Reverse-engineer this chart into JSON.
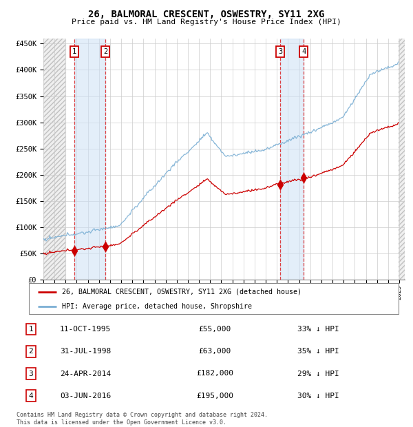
{
  "title": "26, BALMORAL CRESCENT, OSWESTRY, SY11 2XG",
  "subtitle": "Price paid vs. HM Land Registry's House Price Index (HPI)",
  "ylim": [
    0,
    460000
  ],
  "yticks": [
    0,
    50000,
    100000,
    150000,
    200000,
    250000,
    300000,
    350000,
    400000,
    450000
  ],
  "ytick_labels": [
    "£0",
    "£50K",
    "£100K",
    "£150K",
    "£200K",
    "£250K",
    "£300K",
    "£350K",
    "£400K",
    "£450K"
  ],
  "hpi_color": "#7bafd4",
  "price_color": "#cc0000",
  "marker_color": "#cc0000",
  "sale_dates": [
    "1995-10-11",
    "1998-07-31",
    "2014-04-24",
    "2016-06-03"
  ],
  "sale_prices": [
    55000,
    63000,
    182000,
    195000
  ],
  "sale_labels": [
    "1",
    "2",
    "3",
    "4"
  ],
  "sale_pcts": [
    "33% ↓ HPI",
    "35% ↓ HPI",
    "29% ↓ HPI",
    "30% ↓ HPI"
  ],
  "sale_display_dates": [
    "11-OCT-1995",
    "31-JUL-1998",
    "24-APR-2014",
    "03-JUN-2016"
  ],
  "sale_price_strs": [
    "£55,000",
    "£63,000",
    "£182,000",
    "£195,000"
  ],
  "legend_line1": "26, BALMORAL CRESCENT, OSWESTRY, SY11 2XG (detached house)",
  "legend_line2": "HPI: Average price, detached house, Shropshire",
  "footnote": "Contains HM Land Registry data © Crown copyright and database right 2024.\nThis data is licensed under the Open Government Licence v3.0.",
  "xstart_year": 1993,
  "xend_year": 2025
}
